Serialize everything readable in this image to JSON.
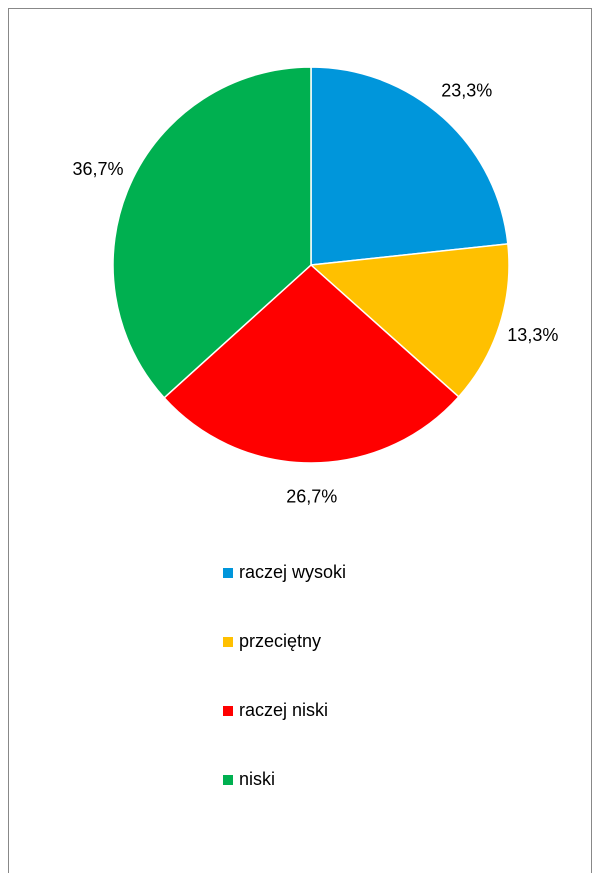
{
  "chart_data": {
    "type": "pie",
    "categories": [
      "raczej wysoki",
      "przeciętny",
      "raczej niski",
      "niski"
    ],
    "values": [
      23.3,
      13.3,
      26.7,
      36.7
    ],
    "value_labels": [
      "23,3%",
      "13,3%",
      "26,7%",
      "36,7%"
    ],
    "colors": [
      "#0096db",
      "#ffc000",
      "#ff0000",
      "#00b050"
    ],
    "legend": "bottom"
  }
}
